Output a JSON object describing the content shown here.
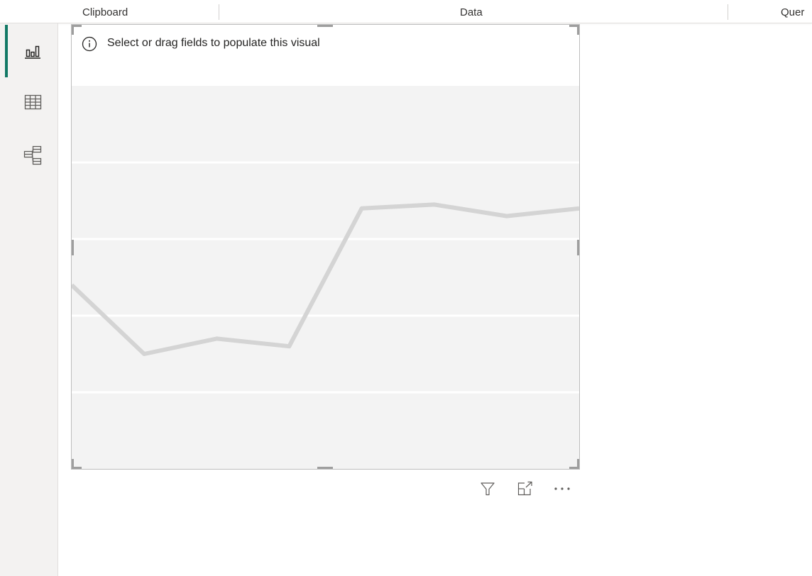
{
  "ribbon": {
    "groups": [
      {
        "label": "Clipboard"
      },
      {
        "label": "Data"
      },
      {
        "label": "Quer"
      }
    ]
  },
  "left_rail": {
    "items": [
      {
        "name": "report-view",
        "icon": "report-bar-chart-icon",
        "active": true
      },
      {
        "name": "table-view",
        "icon": "table-grid-icon",
        "active": false
      },
      {
        "name": "model-view",
        "icon": "model-diagram-icon",
        "active": false
      }
    ]
  },
  "visual": {
    "message": "Select or drag fields to populate this visual",
    "info_icon": "info-circle-icon",
    "toolbar": [
      {
        "name": "filter",
        "icon": "filter-funnel-icon"
      },
      {
        "name": "focus-mode",
        "icon": "focus-mode-expand-icon"
      },
      {
        "name": "more-options",
        "icon": "more-options-ellipsis-icon"
      }
    ]
  },
  "chart_data": {
    "type": "line",
    "x": [
      0,
      1,
      2,
      3,
      4,
      5,
      6,
      7
    ],
    "series": [
      {
        "values": [
          48,
          30,
          34,
          32,
          68,
          69,
          66,
          68
        ]
      }
    ],
    "ylim": [
      0,
      100
    ],
    "grid": true,
    "gridlines_y": [
      0,
      20,
      40,
      60,
      80
    ],
    "line_color": "#d4d4d4",
    "placeholder": true
  },
  "colors": {
    "accent": "#117865",
    "rail_background": "#f3f2f1",
    "chart_background": "#f3f3f3",
    "border": "#bdbdbd"
  }
}
